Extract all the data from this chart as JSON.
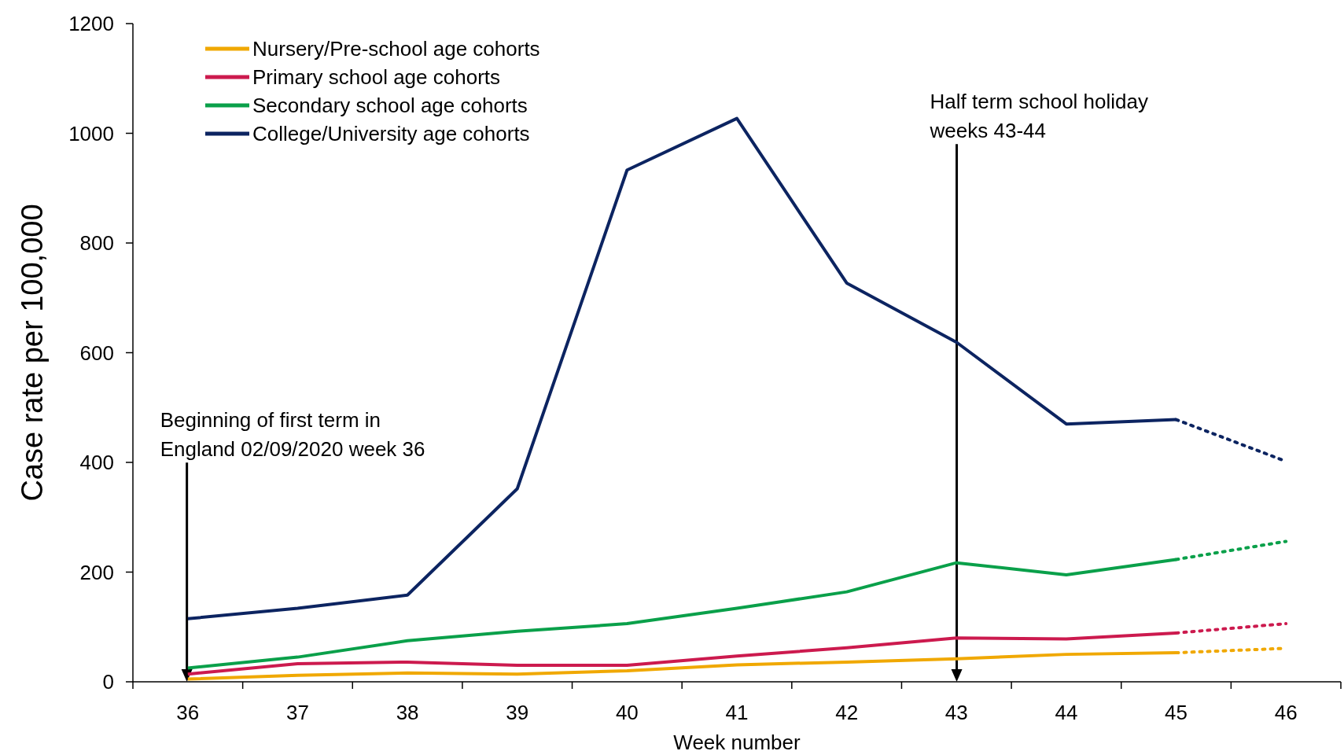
{
  "chart_data": {
    "type": "line",
    "xlabel": "Week number",
    "ylabel": "Case rate per 100,000",
    "categories": [
      "36",
      "37",
      "38",
      "39",
      "40",
      "41",
      "42",
      "43",
      "44",
      "45",
      "46"
    ],
    "ylim": [
      0,
      1200
    ],
    "yticks": [
      0,
      200,
      400,
      600,
      800,
      1000,
      1200
    ],
    "legend": "top left",
    "marker": "none",
    "series": [
      {
        "name": "Nursery/Pre-school age cohorts",
        "color": "#f0a800",
        "line_style": "solid",
        "values": [
          5,
          12,
          16,
          14,
          20,
          31,
          36,
          42,
          50,
          53,
          null
        ]
      },
      {
        "name": "Primary school age cohorts",
        "color": "#cc1a4e",
        "line_style": "solid",
        "values": [
          14,
          33,
          36,
          30,
          30,
          47,
          62,
          80,
          78,
          89,
          null
        ]
      },
      {
        "name": "Secondary school age cohorts",
        "color": "#0aa04a",
        "line_style": "solid",
        "values": [
          25,
          45,
          75,
          92,
          106,
          134,
          164,
          217,
          195,
          223,
          null
        ]
      },
      {
        "name": "College/University age cohorts",
        "color": "#0c2461",
        "line_style": "solid",
        "values": [
          115,
          134,
          158,
          352,
          933,
          1027,
          727,
          619,
          470,
          478,
          null
        ]
      },
      {
        "color": "#f0a800",
        "line_style": "dotted",
        "values": [
          null,
          null,
          null,
          null,
          null,
          null,
          null,
          null,
          null,
          53,
          61
        ]
      },
      {
        "color": "#cc1a4e",
        "line_style": "dotted",
        "values": [
          null,
          null,
          null,
          null,
          null,
          null,
          null,
          null,
          null,
          89,
          106
        ]
      },
      {
        "color": "#0aa04a",
        "line_style": "dotted",
        "values": [
          null,
          null,
          null,
          null,
          null,
          null,
          null,
          null,
          null,
          223,
          256
        ]
      },
      {
        "color": "#0c2461",
        "line_style": "dotted",
        "values": [
          null,
          null,
          null,
          null,
          null,
          null,
          null,
          null,
          null,
          478,
          402
        ]
      }
    ],
    "annotations": [
      "Beginning of first term in England 02/09/2020 week 36",
      "Half term school holiday weeks 43-44"
    ]
  }
}
